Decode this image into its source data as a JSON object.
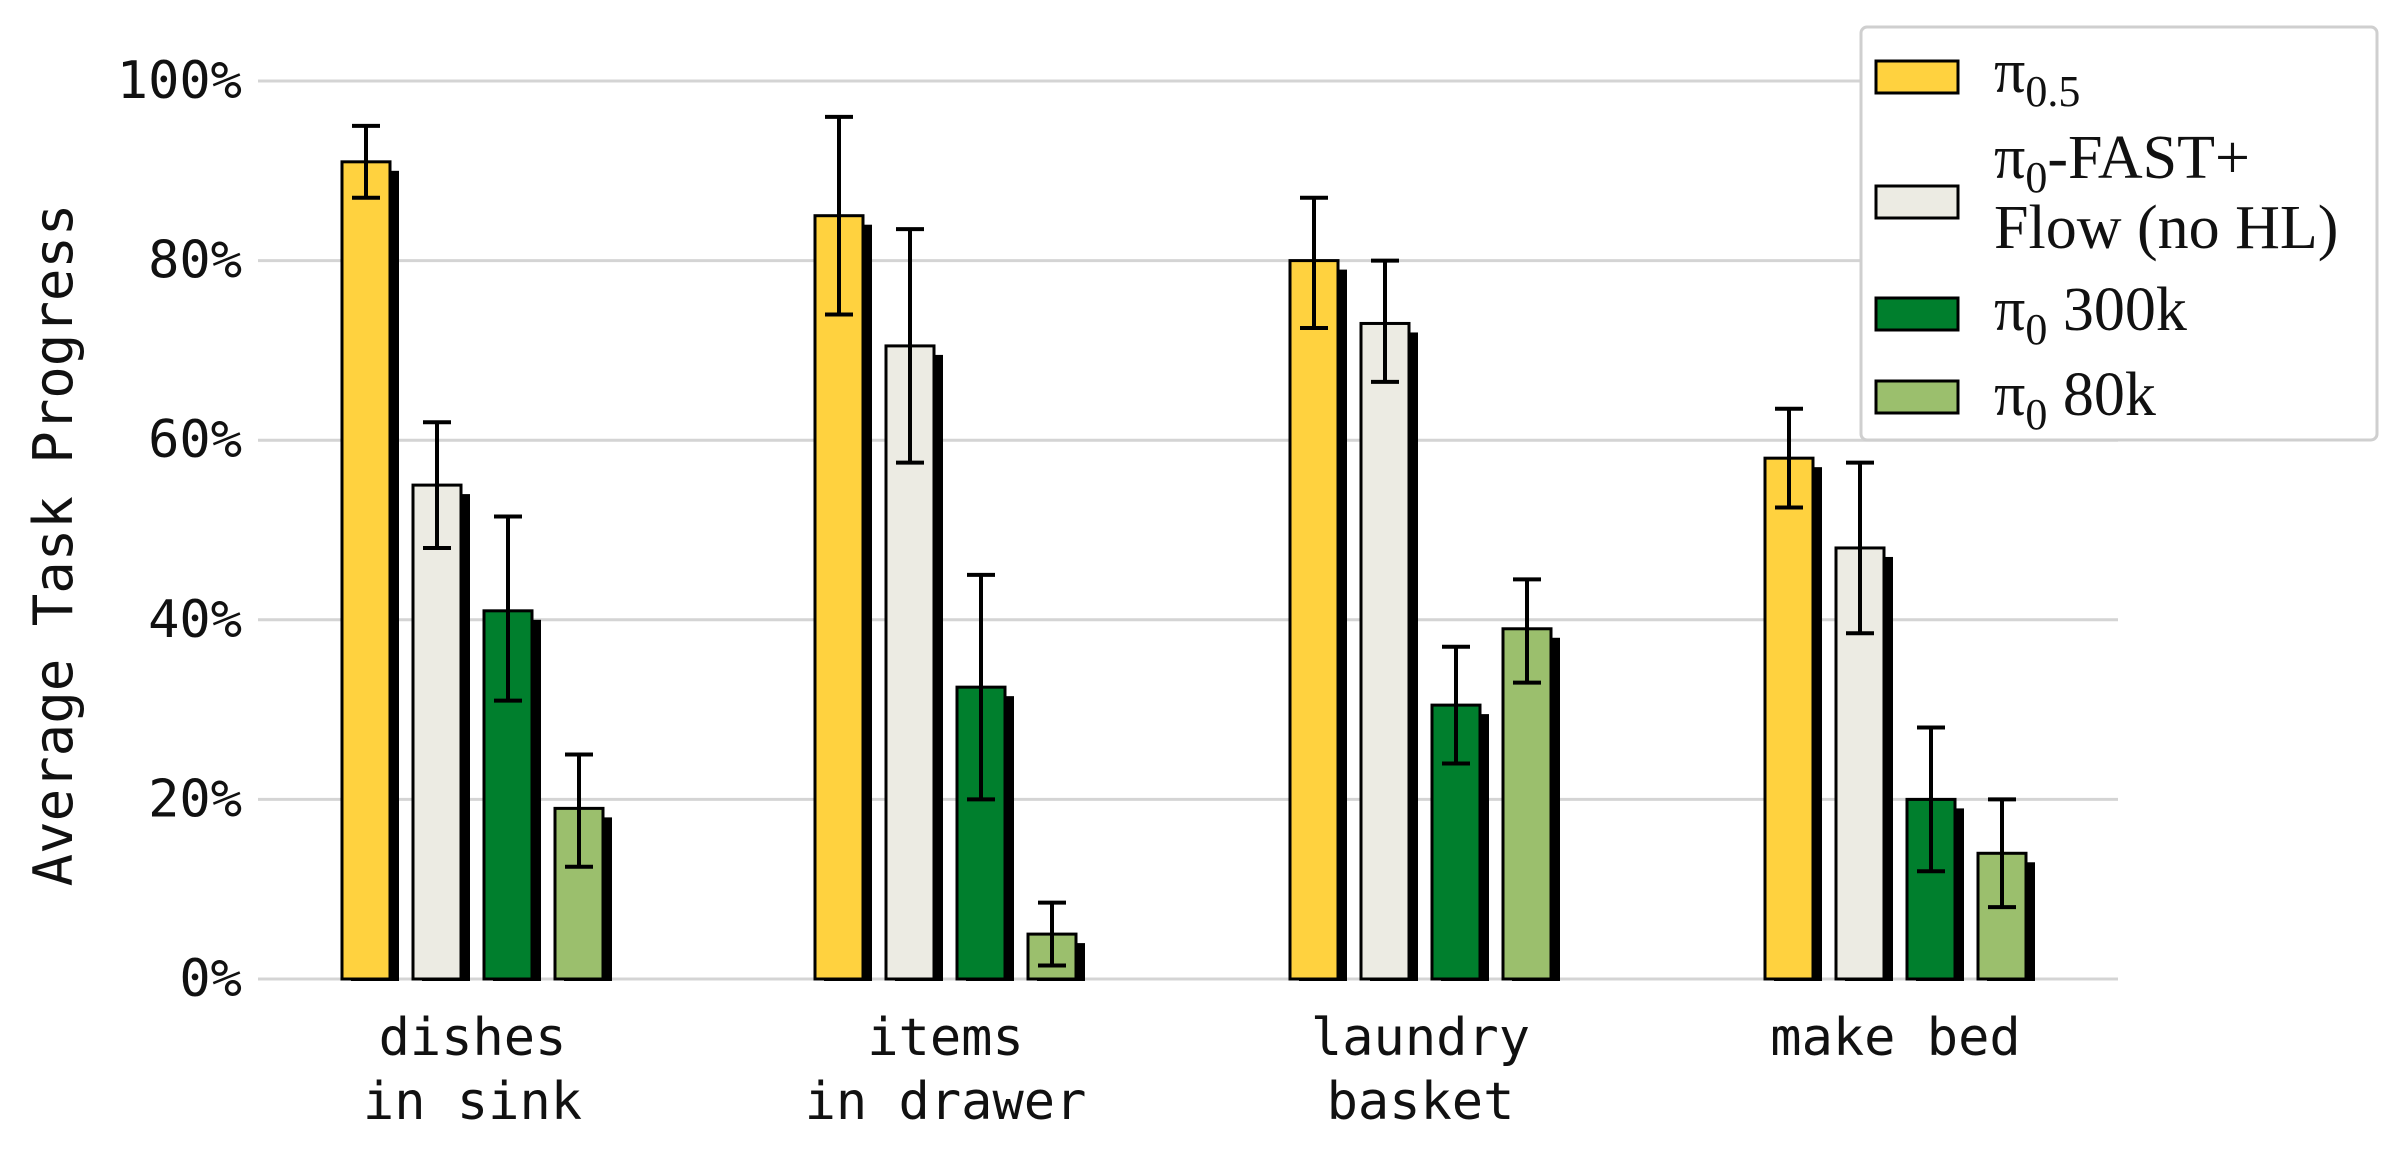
{
  "chart_data": {
    "type": "bar",
    "ylabel": "Average Task Progress",
    "xlabel": "",
    "ylim": [
      0,
      100
    ],
    "yticks": [
      0,
      20,
      40,
      60,
      80,
      100
    ],
    "ytick_labels": [
      "0%",
      "20%",
      "40%",
      "60%",
      "80%",
      "100%"
    ],
    "grid": "horizontal",
    "legend_position": "top-right",
    "categories": [
      [
        "dishes",
        "in sink"
      ],
      [
        "items",
        "in drawer"
      ],
      [
        "laundry",
        "basket"
      ],
      [
        "make bed"
      ]
    ],
    "series": [
      {
        "name": "π0.5",
        "name_base": "π",
        "name_sub": "0.5",
        "name_line2": "",
        "color": "#ffd23f",
        "values": [
          91,
          85,
          80,
          58
        ],
        "err_low": [
          87,
          74,
          72.5,
          52.5
        ],
        "err_high": [
          95,
          96,
          87,
          63.5
        ]
      },
      {
        "name": "π0-FAST+ Flow (no HL)",
        "name_base": "π",
        "name_sub": "0",
        "name_rest": "-FAST+",
        "name_line2": "Flow (no HL)",
        "color": "#ecebe3",
        "values": [
          55,
          70.5,
          73,
          48
        ],
        "err_low": [
          48,
          57.5,
          66.5,
          38.5
        ],
        "err_high": [
          62,
          83.5,
          80,
          57.5
        ]
      },
      {
        "name": "π0 300k",
        "name_base": "π",
        "name_sub": "0",
        "name_rest": " 300k",
        "name_line2": "",
        "color": "#007f2d",
        "values": [
          41,
          32.5,
          30.5,
          20
        ],
        "err_low": [
          31,
          20,
          24,
          12
        ],
        "err_high": [
          51.5,
          45,
          37,
          28
        ]
      },
      {
        "name": "π0 80k",
        "name_base": "π",
        "name_sub": "0",
        "name_rest": " 80k",
        "name_line2": "",
        "color": "#9bbf6d",
        "values": [
          19,
          5,
          39,
          14
        ],
        "err_low": [
          12.5,
          1.5,
          33,
          8
        ],
        "err_high": [
          25,
          8.5,
          44.5,
          20
        ]
      }
    ]
  }
}
